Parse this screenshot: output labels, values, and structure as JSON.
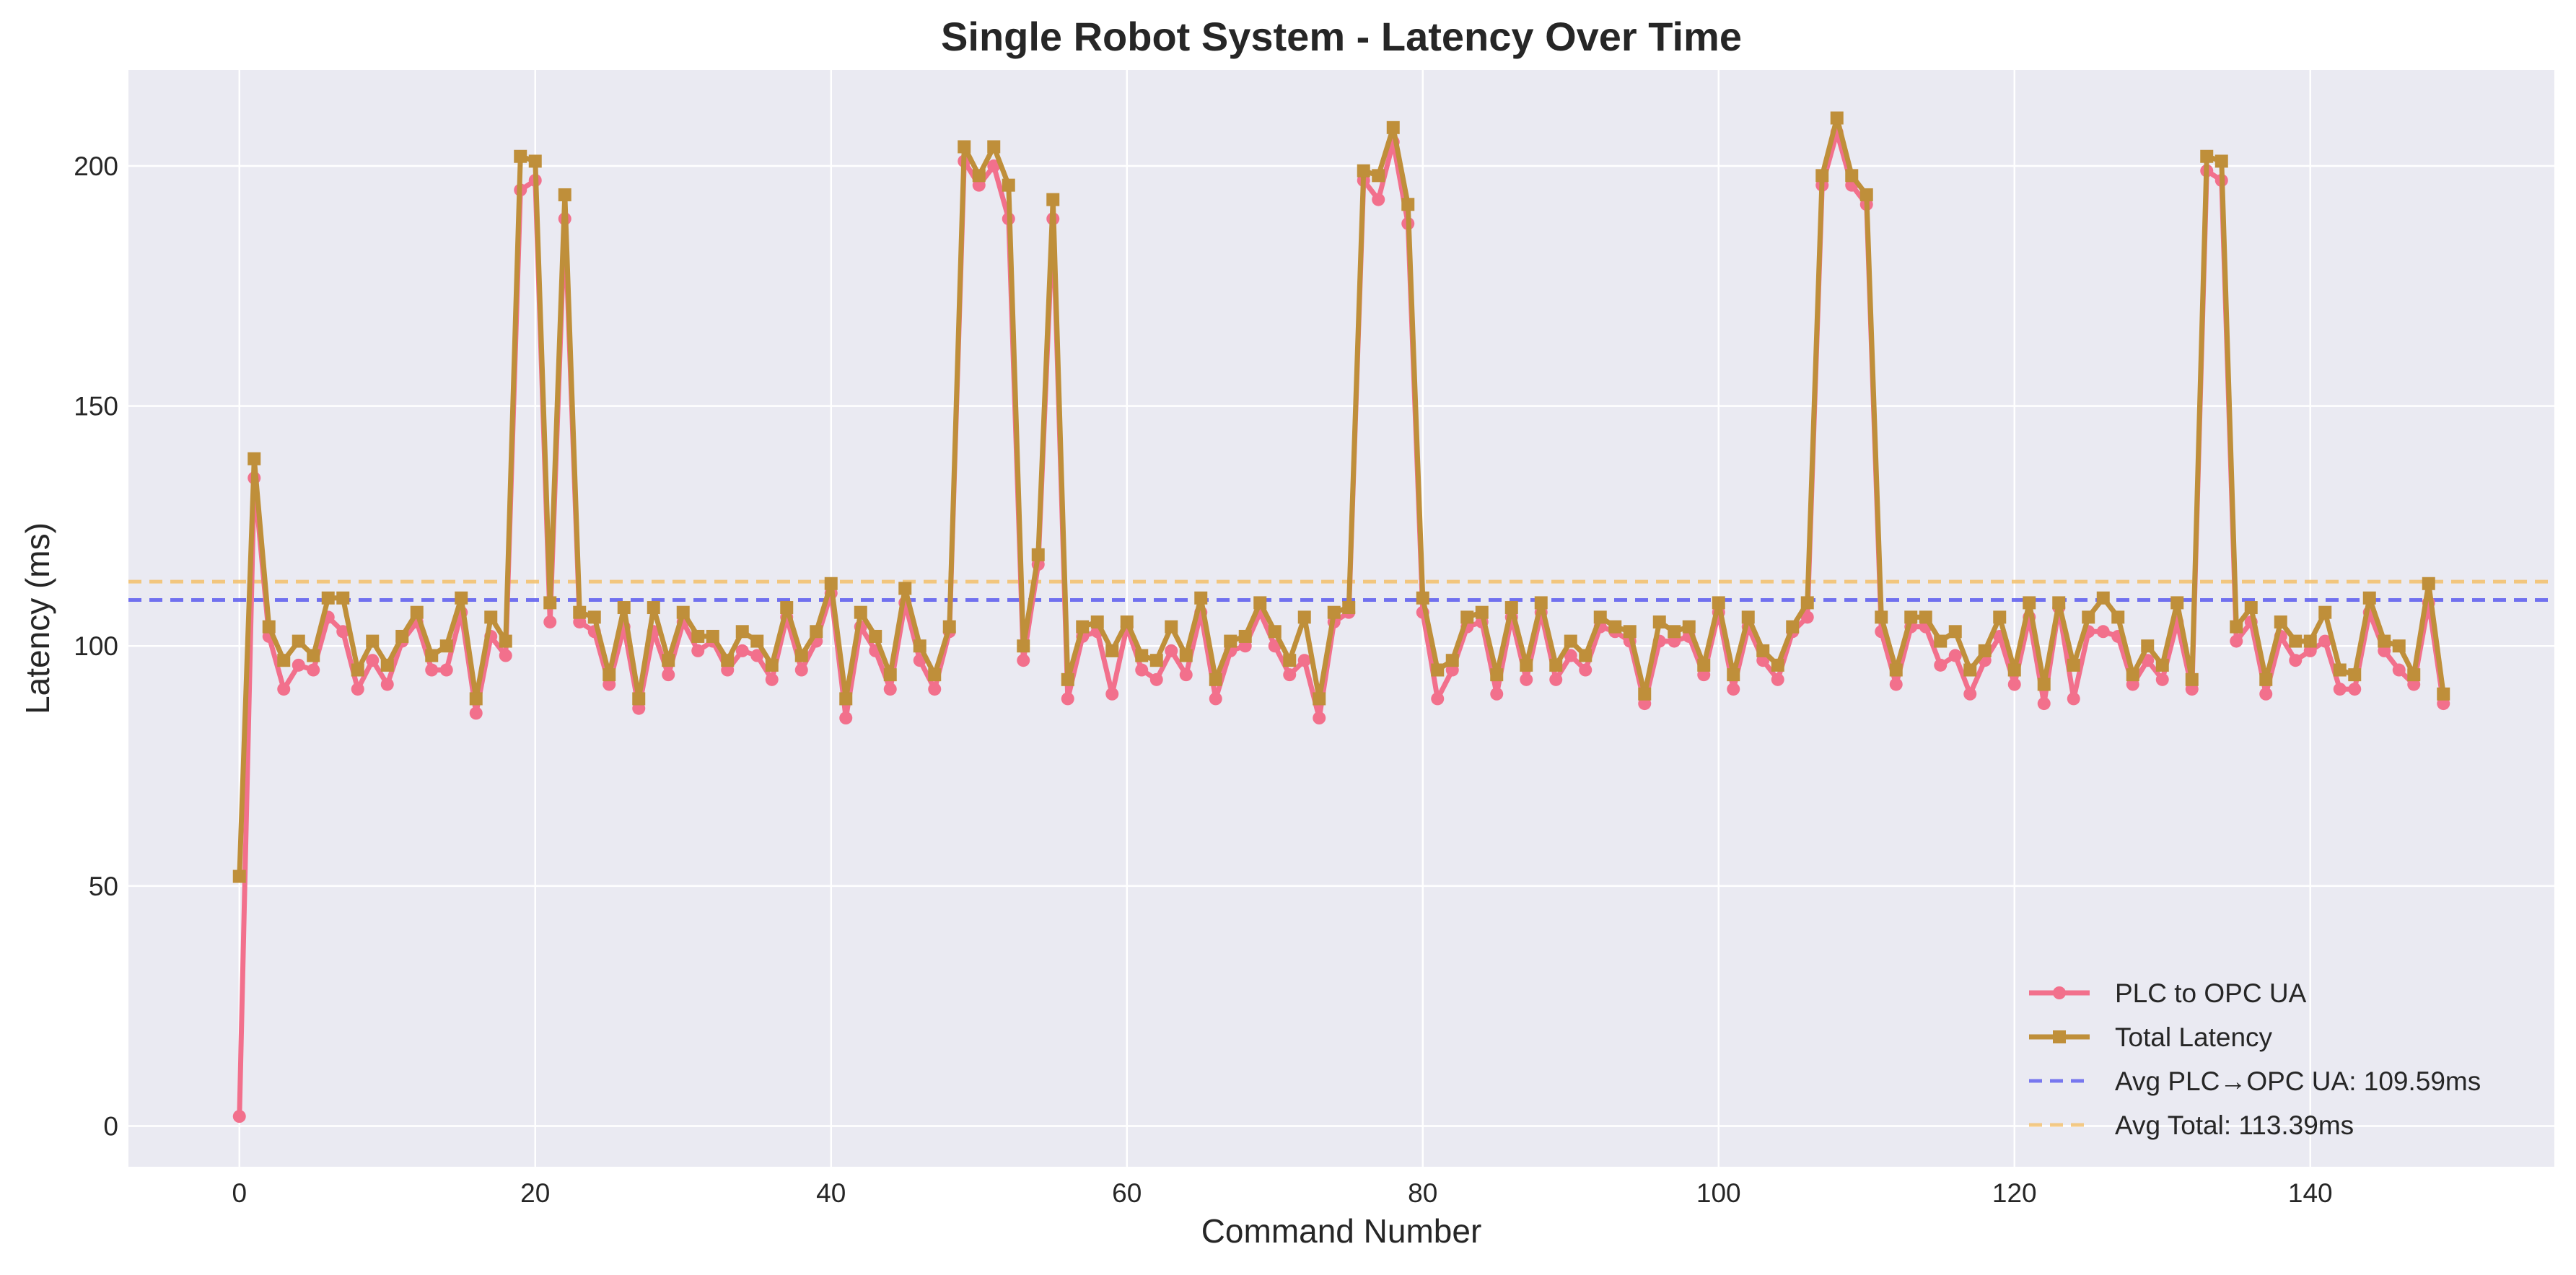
{
  "chart_data": {
    "type": "line",
    "title": "Single Robot System - Latency Over Time",
    "xlabel": "Command Number",
    "ylabel": "Latency (ms)",
    "xlim": [
      -7.5,
      156.5
    ],
    "ylim": [
      -8.5,
      220
    ],
    "xticks": [
      0,
      20,
      40,
      60,
      80,
      100,
      120,
      140
    ],
    "yticks": [
      0,
      50,
      100,
      150,
      200
    ],
    "grid": true,
    "legend_position": "bottom-right",
    "x": [
      0,
      1,
      2,
      3,
      4,
      5,
      6,
      7,
      8,
      9,
      10,
      11,
      12,
      13,
      14,
      15,
      16,
      17,
      18,
      19,
      20,
      21,
      22,
      23,
      24,
      25,
      26,
      27,
      28,
      29,
      30,
      31,
      32,
      33,
      34,
      35,
      36,
      37,
      38,
      39,
      40,
      41,
      42,
      43,
      44,
      45,
      46,
      47,
      48,
      49,
      50,
      51,
      52,
      53,
      54,
      55,
      56,
      57,
      58,
      59,
      60,
      61,
      62,
      63,
      64,
      65,
      66,
      67,
      68,
      69,
      70,
      71,
      72,
      73,
      74,
      75,
      76,
      77,
      78,
      79,
      80,
      81,
      82,
      83,
      84,
      85,
      86,
      87,
      88,
      89,
      90,
      91,
      92,
      93,
      94,
      95,
      96,
      97,
      98,
      99,
      100,
      101,
      102,
      103,
      104,
      105,
      106,
      107,
      108,
      109,
      110,
      111,
      112,
      113,
      114,
      115,
      116,
      117,
      118,
      119,
      120,
      121,
      122,
      123,
      124,
      125,
      126,
      127,
      128,
      129,
      130,
      131,
      132,
      133,
      134,
      135,
      136,
      137,
      138,
      139,
      140,
      141,
      142,
      143,
      144,
      145,
      146,
      147,
      148,
      149
    ],
    "series": [
      {
        "name": "PLC to OPC UA",
        "color": "#f2708c",
        "marker": "circle",
        "values": [
          2,
          135,
          102,
          91,
          96,
          95,
          106,
          103,
          91,
          97,
          92,
          101,
          105,
          95,
          95,
          107,
          86,
          102,
          98,
          195,
          197,
          105,
          189,
          105,
          103,
          92,
          104,
          87,
          103,
          94,
          105,
          99,
          101,
          95,
          99,
          98,
          93,
          106,
          95,
          101,
          111,
          85,
          104,
          99,
          91,
          109,
          97,
          91,
          103,
          201,
          196,
          200,
          189,
          97,
          117,
          189,
          89,
          102,
          103,
          90,
          104,
          95,
          93,
          99,
          94,
          107,
          89,
          99,
          100,
          107,
          100,
          94,
          97,
          85,
          105,
          107,
          197,
          193,
          205,
          188,
          107,
          89,
          95,
          104,
          105,
          90,
          106,
          93,
          107,
          93,
          98,
          95,
          104,
          103,
          101,
          88,
          101,
          101,
          102,
          94,
          107,
          91,
          104,
          97,
          93,
          103,
          106,
          196,
          207,
          196,
          192,
          103,
          92,
          104,
          104,
          96,
          98,
          90,
          97,
          102,
          92,
          106,
          88,
          108,
          89,
          103,
          103,
          102,
          92,
          97,
          93,
          105,
          91,
          199,
          197,
          101,
          105,
          90,
          102,
          97,
          99,
          101,
          91,
          91,
          107,
          99,
          95,
          92,
          109,
          88
        ]
      },
      {
        "name": "Total Latency",
        "color": "#bf8f3a",
        "marker": "square",
        "values": [
          52,
          139,
          104,
          97,
          101,
          98,
          110,
          110,
          95,
          101,
          96,
          102,
          107,
          98,
          100,
          110,
          89,
          106,
          101,
          202,
          201,
          109,
          194,
          107,
          106,
          94,
          108,
          89,
          108,
          97,
          107,
          102,
          102,
          97,
          103,
          101,
          96,
          108,
          98,
          103,
          113,
          89,
          107,
          102,
          94,
          112,
          100,
          94,
          104,
          204,
          198,
          204,
          196,
          100,
          119,
          193,
          93,
          104,
          105,
          99,
          105,
          98,
          97,
          104,
          98,
          110,
          93,
          101,
          102,
          109,
          103,
          97,
          106,
          89,
          107,
          108,
          199,
          198,
          208,
          192,
          110,
          95,
          97,
          106,
          107,
          94,
          108,
          96,
          109,
          96,
          101,
          98,
          106,
          104,
          103,
          90,
          105,
          103,
          104,
          96,
          109,
          94,
          106,
          99,
          96,
          104,
          109,
          198,
          210,
          198,
          194,
          106,
          95,
          106,
          106,
          101,
          103,
          95,
          99,
          106,
          95,
          109,
          92,
          109,
          96,
          106,
          110,
          106,
          94,
          100,
          96,
          109,
          93,
          202,
          201,
          104,
          108,
          93,
          105,
          101,
          101,
          107,
          95,
          94,
          110,
          101,
          100,
          94,
          113,
          90
        ]
      }
    ],
    "reference_lines": [
      {
        "name": "Avg PLC→OPC UA: 109.59ms",
        "value": 109.59,
        "color": "#5b5bef"
      },
      {
        "name": "Avg Total: 113.39ms",
        "value": 113.39,
        "color": "#f4c06a"
      }
    ],
    "colors": {
      "plot_background": "#eaeaf2",
      "grid": "#ffffff",
      "page_background": "#ffffff",
      "text": "#262626"
    }
  }
}
